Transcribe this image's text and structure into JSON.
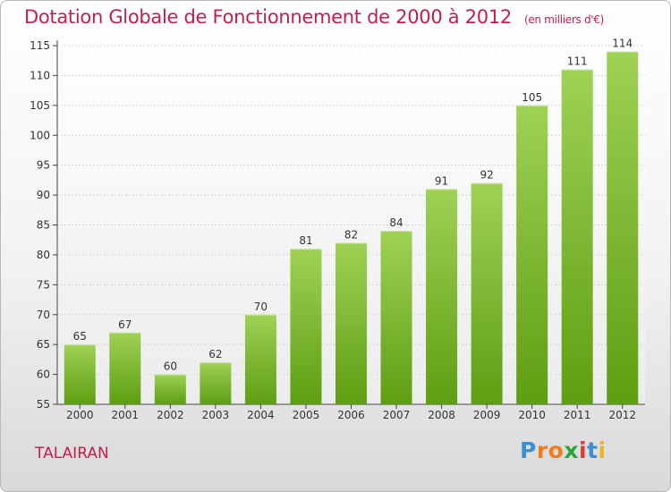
{
  "chart_data": {
    "type": "bar",
    "title": "Dotation Globale de Fonctionnement de 2000 à 2012",
    "subtitle": "(en milliers d'€)",
    "categories": [
      "2000",
      "2001",
      "2002",
      "2003",
      "2004",
      "2005",
      "2006",
      "2007",
      "2008",
      "2009",
      "2010",
      "2011",
      "2012"
    ],
    "values": [
      65,
      67,
      60,
      62,
      70,
      81,
      82,
      84,
      91,
      92,
      105,
      111,
      114
    ],
    "xlabel": "",
    "ylabel": "",
    "ylim": [
      55,
      115
    ],
    "yticks": [
      55,
      60,
      65,
      70,
      75,
      80,
      85,
      90,
      95,
      100,
      105,
      110,
      115
    ],
    "grid": true,
    "bar_color_top": "#9fd155",
    "bar_color_bottom": "#5e9e12"
  },
  "place_name": "TALAIRAN",
  "logo": {
    "letters": [
      "P",
      "r",
      "o",
      "x",
      "i",
      "t",
      "i"
    ],
    "colors": [
      "#3a8fd6",
      "#f07c1a",
      "#f07c1a",
      "#2aa53a",
      "#e53a2c",
      "#3a8fd6",
      "#f0b41a"
    ]
  }
}
